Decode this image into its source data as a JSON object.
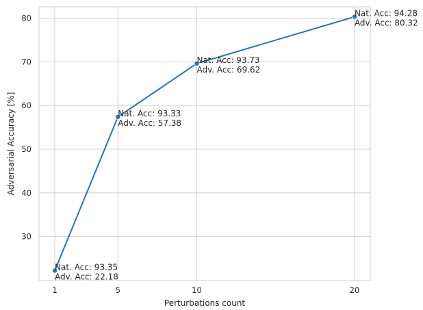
{
  "chart_data": {
    "type": "line",
    "x": [
      1,
      5,
      10,
      20
    ],
    "series": [
      {
        "values": [
          22.18,
          57.38,
          69.62,
          80.32
        ],
        "color": "#1f77b4",
        "marker": "circle",
        "annotations": [
          [
            "Nat. Acc: 93.35",
            "Adv. Acc: 22.18"
          ],
          [
            "Nat. Acc: 93.33",
            "Adv. Acc: 57.38"
          ],
          [
            "Nat. Acc: 93.73",
            "Adv. Acc: 69.62"
          ],
          [
            "Nat. Acc: 94.28",
            "Adv. Acc: 80.32"
          ]
        ]
      }
    ],
    "xlabel": "Perturbations count",
    "ylabel": "Adversarial Accuracy [%]",
    "xticks": [
      1,
      5,
      10,
      20
    ],
    "yticks": [
      30,
      40,
      50,
      60,
      70,
      80
    ],
    "xlim": [
      0,
      21
    ],
    "ylim": [
      19.9,
      82.6
    ],
    "grid": true,
    "style": "whitegrid"
  }
}
